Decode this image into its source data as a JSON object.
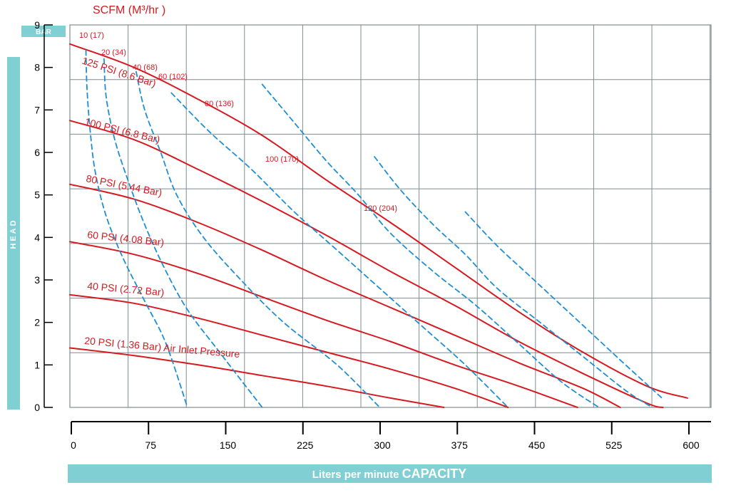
{
  "chart_data": {
    "type": "line",
    "title": "SCFM (M³/hr )",
    "ylabel": "HEAD",
    "yunit": "BAR",
    "xlabel_prefix": "Liters per minute ",
    "xlabel_main": "CAPACITY",
    "xlim": [
      0,
      600
    ],
    "ylim": [
      0,
      9
    ],
    "x_ticks": [
      0,
      75,
      150,
      225,
      300,
      375,
      450,
      525,
      600
    ],
    "y_ticks": [
      0,
      1,
      2,
      3,
      4,
      5,
      6,
      7,
      8,
      9
    ],
    "grid_x": [
      0,
      60,
      120,
      180,
      240,
      300,
      360,
      420,
      480,
      540,
      600,
      660
    ],
    "grid_y": [
      0,
      1.4,
      2.8,
      4.2,
      5.6,
      7.0,
      8.4,
      9.8
    ],
    "grid": true,
    "colors": {
      "pressure_curve": "#d71920",
      "air_curve": "#1e8fd3",
      "grid": "#7f8c93",
      "label_bar": "#7fcfd3",
      "axis": "#000000"
    },
    "series": [
      {
        "name": "125 PSI (8.6 Bar)",
        "kind": "pressure",
        "x": [
          0,
          60,
          120,
          180,
          240,
          300,
          360,
          420,
          480,
          540,
          578
        ],
        "y": [
          8.55,
          8.0,
          7.25,
          6.4,
          5.35,
          4.35,
          3.3,
          2.25,
          1.3,
          0.5,
          0.22
        ]
      },
      {
        "name": "100 PSI (6.8 Bar)",
        "kind": "pressure",
        "x": [
          0,
          60,
          120,
          180,
          240,
          300,
          360,
          420,
          480,
          540,
          555
        ],
        "y": [
          6.75,
          6.3,
          5.6,
          4.85,
          4.05,
          3.2,
          2.4,
          1.55,
          0.8,
          0.1,
          0.0
        ]
      },
      {
        "name": "80 PSI (5.44 Bar)",
        "kind": "pressure",
        "x": [
          0,
          60,
          120,
          180,
          240,
          300,
          360,
          420,
          480,
          515
        ],
        "y": [
          5.25,
          4.9,
          4.35,
          3.7,
          3.0,
          2.35,
          1.7,
          1.05,
          0.45,
          0.0
        ]
      },
      {
        "name": "60 PSI (4.08 Bar)",
        "kind": "pressure",
        "x": [
          0,
          60,
          120,
          180,
          240,
          300,
          360,
          420,
          475
        ],
        "y": [
          3.9,
          3.6,
          3.15,
          2.6,
          2.05,
          1.55,
          1.0,
          0.5,
          0.0
        ]
      },
      {
        "name": "40 PSI (2.72 Bar)",
        "kind": "pressure",
        "x": [
          0,
          60,
          120,
          180,
          240,
          300,
          360,
          410
        ],
        "y": [
          2.65,
          2.45,
          2.1,
          1.7,
          1.3,
          0.9,
          0.45,
          0.0
        ]
      },
      {
        "name": "20 PSI (1.36 Bar) Air Inlet Pressure",
        "kind": "pressure",
        "x": [
          0,
          60,
          120,
          180,
          240,
          300,
          350
        ],
        "y": [
          1.4,
          1.22,
          1.0,
          0.75,
          0.5,
          0.22,
          0.0
        ]
      },
      {
        "name": "10 (17)",
        "kind": "air",
        "x": [
          15,
          16,
          19,
          24,
          34,
          50,
          70,
          90,
          110
        ],
        "y": [
          8.4,
          7.5,
          6.5,
          5.5,
          4.5,
          3.5,
          2.5,
          1.5,
          0.0
        ]
      },
      {
        "name": "20 (34)",
        "kind": "air",
        "x": [
          32,
          34,
          42,
          55,
          70,
          88,
          110,
          140,
          180
        ],
        "y": [
          8.2,
          7.3,
          6.3,
          5.3,
          4.3,
          3.3,
          2.3,
          1.3,
          0.0
        ]
      },
      {
        "name": "40 (68)",
        "kind": "air",
        "x": [
          62,
          70,
          85,
          100,
          125,
          160,
          200,
          250,
          290
        ],
        "y": [
          7.9,
          7.0,
          6.0,
          5.0,
          4.0,
          3.0,
          2.0,
          1.0,
          0.0
        ]
      },
      {
        "name": "60 (102)",
        "kind": "air",
        "x": [
          95,
          130,
          170,
          210,
          250,
          290,
          330,
          370,
          410
        ],
        "y": [
          7.4,
          6.5,
          5.6,
          4.6,
          3.7,
          2.8,
          1.9,
          1.0,
          0.0
        ]
      },
      {
        "name": "80 (136)",
        "kind": "air",
        "x": [
          180,
          210,
          240,
          270,
          300,
          340,
          380,
          420,
          460,
          495
        ],
        "y": [
          7.6,
          6.7,
          5.8,
          5.0,
          4.1,
          3.2,
          2.4,
          1.5,
          0.6,
          0.0
        ]
      },
      {
        "name": "100 (170)",
        "kind": "air",
        "x": [
          285,
          310,
          340,
          370,
          400,
          440,
          480,
          520,
          545
        ],
        "y": [
          5.9,
          5.1,
          4.3,
          3.6,
          2.8,
          2.0,
          1.2,
          0.4,
          0.0
        ]
      },
      {
        "name": "120 (204)",
        "kind": "air",
        "x": [
          370,
          400,
          430,
          460,
          490,
          520,
          555
        ],
        "y": [
          4.6,
          3.8,
          3.1,
          2.4,
          1.7,
          1.0,
          0.2
        ]
      }
    ],
    "labels": [
      {
        "text": "SCFM (M³/hr )",
        "for": "title"
      },
      {
        "text": "10 (17)",
        "for": "air"
      },
      {
        "text": "20 (34)",
        "for": "air"
      },
      {
        "text": "40 (68)",
        "for": "air"
      },
      {
        "text": "60 (102)",
        "for": "air"
      },
      {
        "text": "80 (136)",
        "for": "air"
      },
      {
        "text": "100 (170)",
        "for": "air"
      },
      {
        "text": "120 (204)",
        "for": "air"
      },
      {
        "text": "125 PSI (8.6 Bar)",
        "for": "pressure"
      },
      {
        "text": "100 PSI (6.8 Bar)",
        "for": "pressure"
      },
      {
        "text": "80 PSI (5.44 Bar)",
        "for": "pressure"
      },
      {
        "text": "60 PSI (4.08 Bar)",
        "for": "pressure"
      },
      {
        "text": "40 PSI (2.72 Bar)",
        "for": "pressure"
      },
      {
        "text": "20 PSI (1.36 Bar) Air Inlet Pressure",
        "for": "pressure"
      }
    ]
  }
}
